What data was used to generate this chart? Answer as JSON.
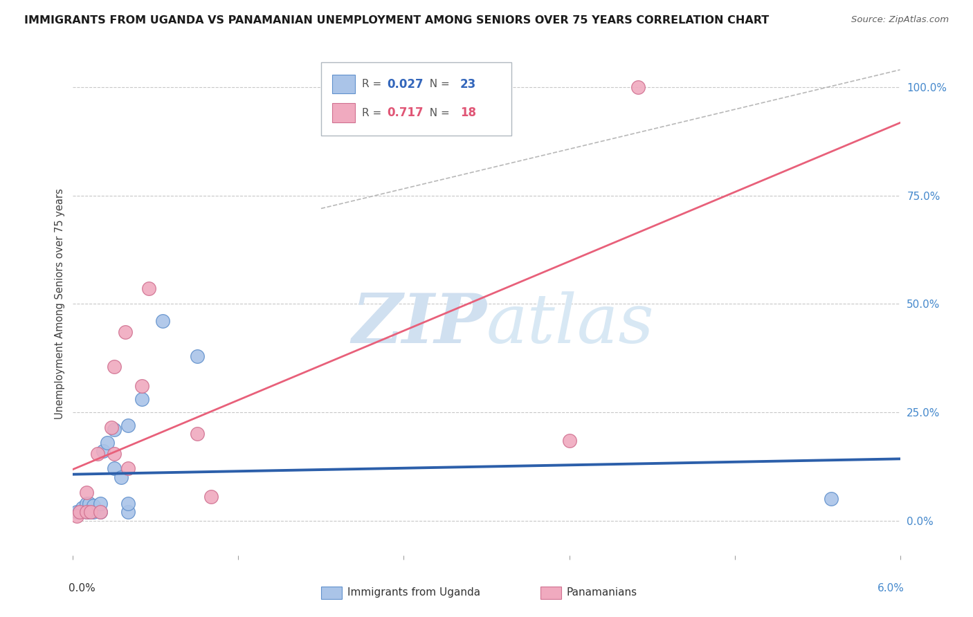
{
  "title": "IMMIGRANTS FROM UGANDA VS PANAMANIAN UNEMPLOYMENT AMONG SENIORS OVER 75 YEARS CORRELATION CHART",
  "source": "Source: ZipAtlas.com",
  "ylabel": "Unemployment Among Seniors over 75 years",
  "ylabel_right_ticks": [
    "100.0%",
    "75.0%",
    "50.0%",
    "25.0%",
    "0.0%"
  ],
  "ylabel_right_vals": [
    1.0,
    0.75,
    0.5,
    0.25,
    0.0
  ],
  "xlim": [
    0.0,
    0.06
  ],
  "ylim": [
    -0.08,
    1.08
  ],
  "uganda_points": [
    [
      0.0003,
      0.02
    ],
    [
      0.0005,
      0.02
    ],
    [
      0.0007,
      0.03
    ],
    [
      0.001,
      0.02
    ],
    [
      0.001,
      0.04
    ],
    [
      0.0012,
      0.02
    ],
    [
      0.0012,
      0.04
    ],
    [
      0.0015,
      0.02
    ],
    [
      0.0015,
      0.035
    ],
    [
      0.002,
      0.02
    ],
    [
      0.002,
      0.04
    ],
    [
      0.0022,
      0.16
    ],
    [
      0.0025,
      0.18
    ],
    [
      0.003,
      0.12
    ],
    [
      0.003,
      0.21
    ],
    [
      0.0035,
      0.1
    ],
    [
      0.004,
      0.02
    ],
    [
      0.004,
      0.04
    ],
    [
      0.004,
      0.22
    ],
    [
      0.005,
      0.28
    ],
    [
      0.0065,
      0.46
    ],
    [
      0.009,
      0.38
    ],
    [
      0.055,
      0.05
    ]
  ],
  "panama_points": [
    [
      0.0003,
      0.01
    ],
    [
      0.0005,
      0.02
    ],
    [
      0.001,
      0.02
    ],
    [
      0.001,
      0.065
    ],
    [
      0.0013,
      0.02
    ],
    [
      0.002,
      0.02
    ],
    [
      0.0018,
      0.155
    ],
    [
      0.003,
      0.155
    ],
    [
      0.0028,
      0.215
    ],
    [
      0.003,
      0.355
    ],
    [
      0.0038,
      0.435
    ],
    [
      0.004,
      0.12
    ],
    [
      0.005,
      0.31
    ],
    [
      0.0055,
      0.535
    ],
    [
      0.009,
      0.2
    ],
    [
      0.01,
      0.055
    ],
    [
      0.036,
      0.185
    ],
    [
      0.041,
      1.0
    ]
  ],
  "uganda_line_color": "#2c5faa",
  "panama_line_color": "#e8607a",
  "trendline_dashed_color": "#b8b8b8",
  "uganda_scatter_facecolor": "#aac4e8",
  "uganda_scatter_edgecolor": "#6090cc",
  "panama_scatter_facecolor": "#f0aabf",
  "panama_scatter_edgecolor": "#d07090",
  "background_color": "#ffffff",
  "grid_color": "#c8c8c8",
  "watermark_zip_color": "#d0e0f0",
  "watermark_atlas_color": "#d8e8f4"
}
